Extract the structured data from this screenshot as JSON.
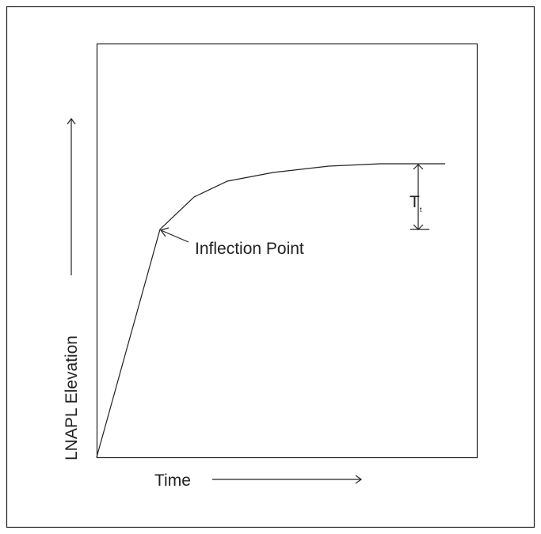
{
  "y_axis_label": "LNAPL Elevation",
  "x_axis_label": "Time",
  "annotation": "Inflection Point",
  "marker": {
    "label": "T",
    "subscript": "t"
  }
}
